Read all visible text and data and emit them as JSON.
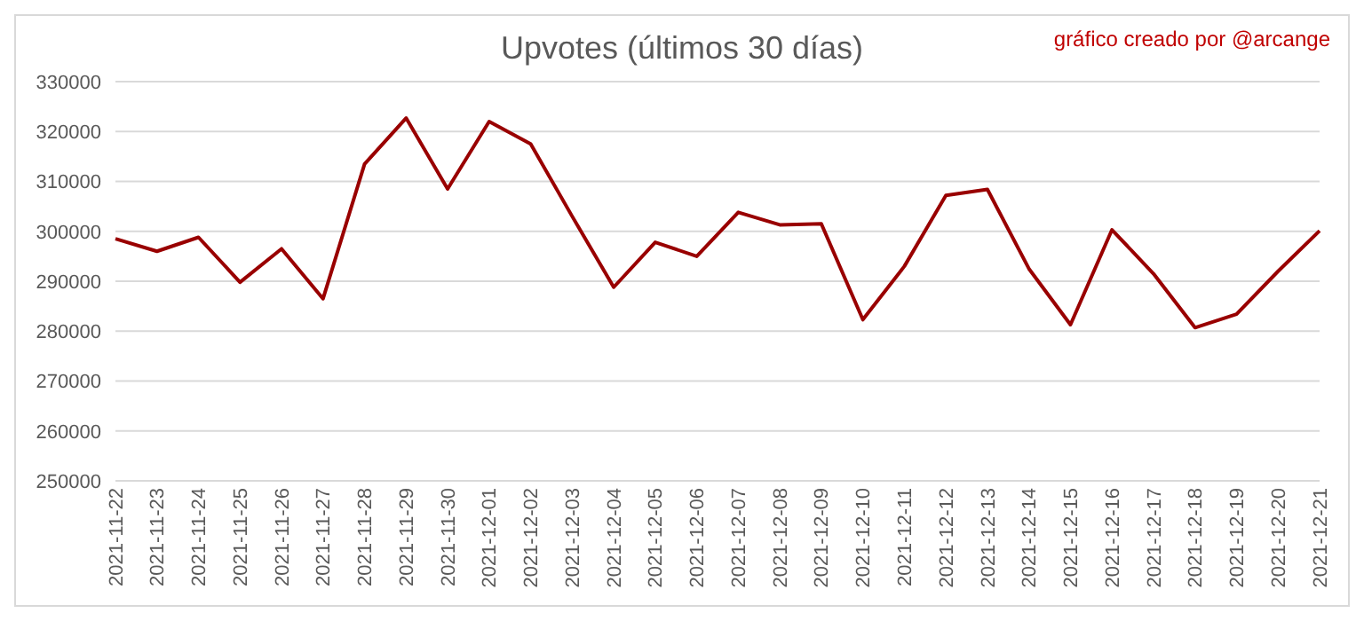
{
  "chart_data": {
    "type": "line",
    "title": "Upvotes (últimos 30 días)",
    "annotations": [
      "gráfico creado por @arcange"
    ],
    "categories": [
      "2021-11-22",
      "2021-11-23",
      "2021-11-24",
      "2021-11-25",
      "2021-11-26",
      "2021-11-27",
      "2021-11-28",
      "2021-11-29",
      "2021-11-30",
      "2021-12-01",
      "2021-12-02",
      "2021-12-03",
      "2021-12-04",
      "2021-12-05",
      "2021-12-06",
      "2021-12-07",
      "2021-12-08",
      "2021-12-09",
      "2021-12-10",
      "2021-12-11",
      "2021-12-12",
      "2021-12-13",
      "2021-12-14",
      "2021-12-15",
      "2021-12-16",
      "2021-12-17",
      "2021-12-18",
      "2021-12-19",
      "2021-12-20",
      "2021-12-21"
    ],
    "series": [
      {
        "color": "#990000",
        "values": [
          298500,
          296000,
          298800,
          289800,
          296500,
          286500,
          313500,
          322700,
          308500,
          322000,
          317500,
          303000,
          288800,
          297800,
          295000,
          303800,
          301300,
          301500,
          282300,
          293000,
          307200,
          308400,
          292500,
          281300,
          300300,
          291500,
          280700,
          283400,
          292000,
          300100
        ]
      }
    ],
    "ylim": [
      250000,
      330000
    ],
    "yticks": [
      250000,
      260000,
      270000,
      280000,
      290000,
      300000,
      310000,
      320000,
      330000
    ],
    "grid": "y",
    "marker": "none",
    "line_style": "solid"
  }
}
